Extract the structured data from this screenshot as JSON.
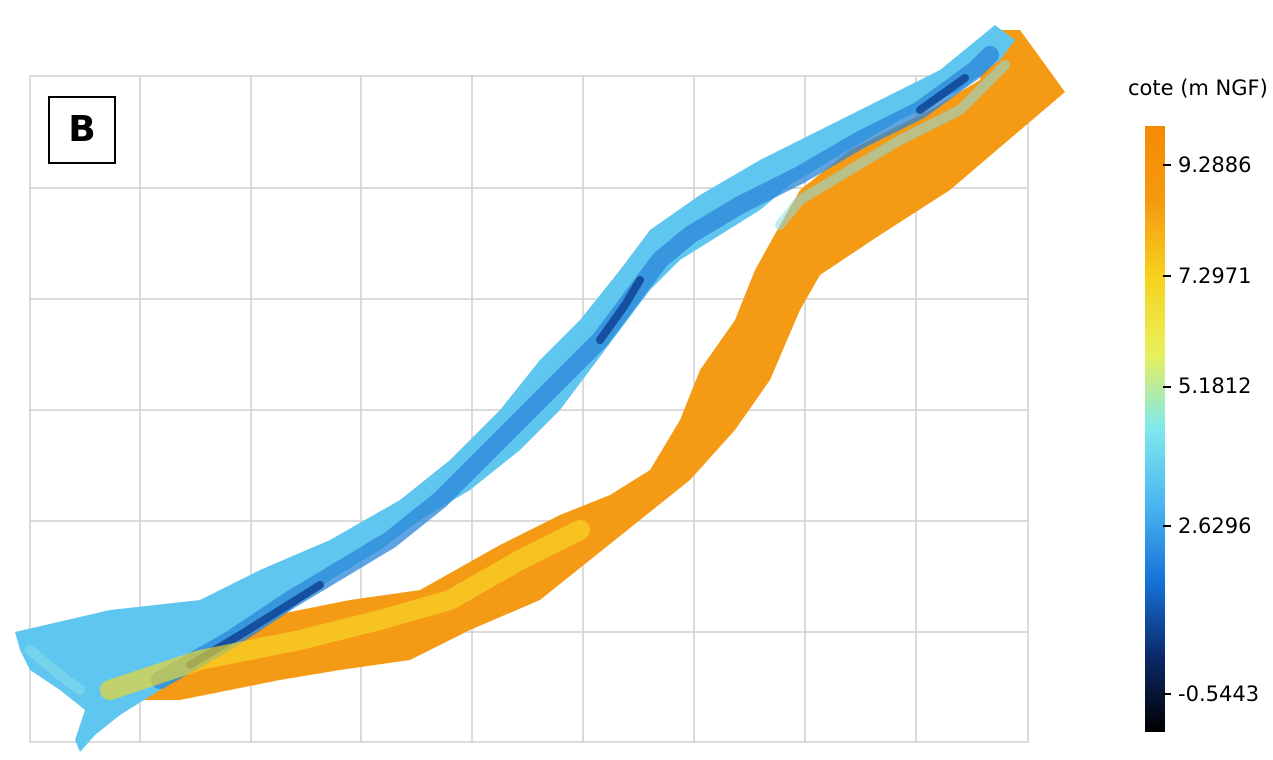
{
  "panel_label": "B",
  "legend": {
    "title": "cote (m NGF)",
    "min": -0.5443,
    "max": 9.2886,
    "ticks": [
      "9.2886",
      "7.2971",
      "5.1812",
      "2.6296",
      "-0.5443"
    ],
    "ramp_colors": [
      "#000000",
      "#0b2a6a",
      "#1673d8",
      "#49b6f0",
      "#7fe8ee",
      "#e8f05a",
      "#f7d21e",
      "#f59a10",
      "#f58a00"
    ]
  },
  "map": {
    "grid": true,
    "palette": {
      "channel_deep": "#0b3f8f",
      "channel_mid": "#2a86d8",
      "channel_shallow": "#5fc6ef",
      "bank_cyan": "#86e0ea",
      "bank_yellow": "#f6d827",
      "bank_orange": "#f59a15"
    }
  }
}
